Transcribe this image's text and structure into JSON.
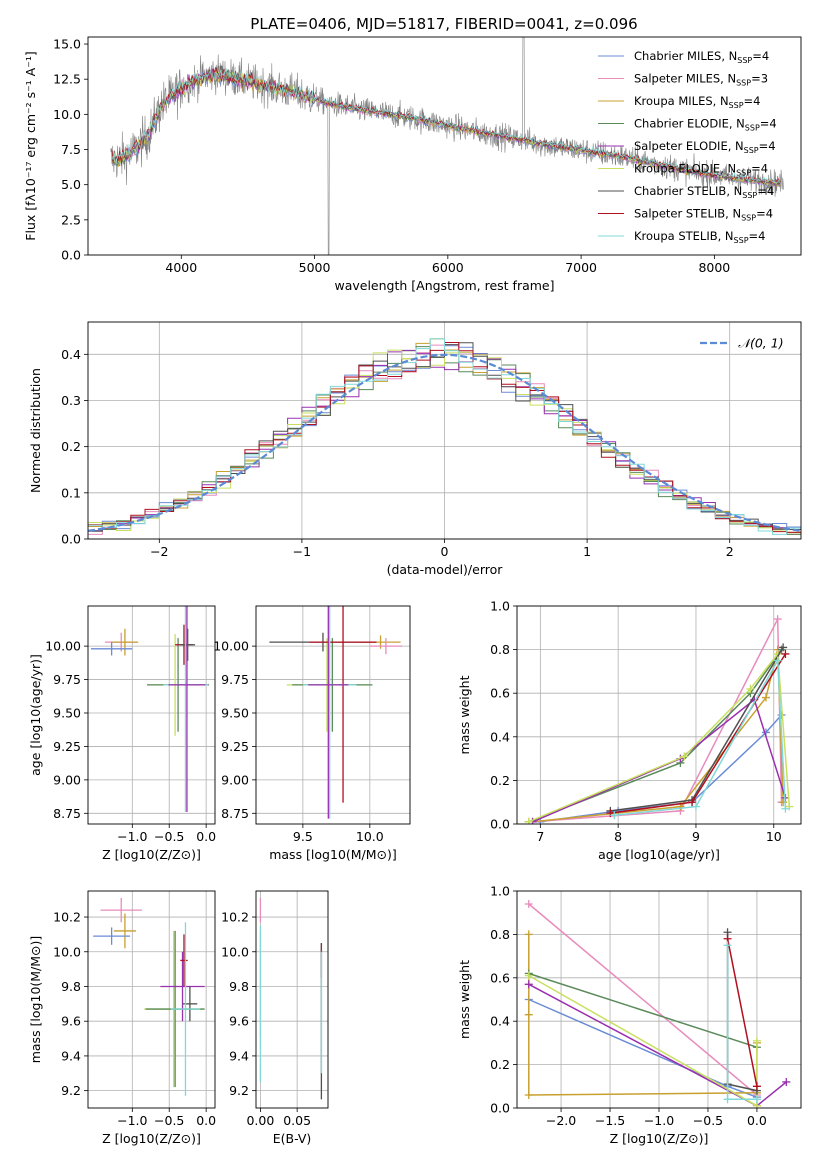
{
  "figure": {
    "title": "PLATE=0406, MJD=51817, FIBERID=0041, z=0.096"
  },
  "series_colors": [
    "#6a8cd6",
    "#e88cbe",
    "#c8a030",
    "#5a8a5a",
    "#9a30b0",
    "#c8e060",
    "#505050",
    "#b01020",
    "#80d8d8"
  ],
  "chart_data": [
    {
      "id": "spectrum",
      "type": "line",
      "title": "PLATE=0406, MJD=51817, FIBERID=0041, z=0.096",
      "xlabel": "wavelength [Angstrom, rest frame]",
      "ylabel": "Flux [fλ10⁻¹⁷ erg cm⁻² s⁻¹ A⁻¹]",
      "xlim": [
        3300,
        8650
      ],
      "ylim": [
        0,
        15.5
      ],
      "xticks": [
        4000,
        5000,
        6000,
        7000,
        8000
      ],
      "yticks": [
        0.0,
        2.5,
        5.0,
        7.5,
        10.0,
        12.5,
        15.0
      ],
      "grid": false,
      "legend_position": "top-right",
      "data_color": "#808080",
      "data_model": {
        "x": [
          3450,
          3550,
          3650,
          3750,
          3850,
          3950,
          4050,
          4150,
          4250,
          4350,
          4500,
          4700,
          4900,
          5100,
          5300,
          5500,
          5700,
          5900,
          6100,
          6300,
          6500,
          6700,
          6900,
          7100,
          7300,
          7500,
          7700,
          7900,
          8100,
          8300,
          8500
        ],
        "y": [
          6.7,
          6.9,
          7.4,
          8.5,
          10.6,
          11.5,
          12.2,
          12.6,
          12.9,
          12.7,
          12.3,
          11.9,
          11.4,
          10.8,
          10.4,
          10.1,
          9.8,
          9.4,
          9.0,
          8.6,
          8.3,
          7.9,
          7.6,
          7.3,
          7.0,
          6.6,
          6.2,
          5.8,
          5.5,
          5.3,
          5.1
        ]
      },
      "series": [
        {
          "name": "Chabrier MILES, NSSP=4",
          "name_main": "Chabrier MILES, N",
          "name_sub": "SSP",
          "name_tail": "=4"
        },
        {
          "name": "Salpeter MILES, NSSP=3",
          "name_main": "Salpeter MILES, N",
          "name_sub": "SSP",
          "name_tail": "=3"
        },
        {
          "name": "Kroupa MILES, NSSP=4",
          "name_main": "Kroupa MILES, N",
          "name_sub": "SSP",
          "name_tail": "=4"
        },
        {
          "name": "Chabrier ELODIE, NSSP=4",
          "name_main": "Chabrier ELODIE, N",
          "name_sub": "SSP",
          "name_tail": "=4"
        },
        {
          "name": "Salpeter ELODIE, NSSP=4",
          "name_main": "Salpeter ELODIE, N",
          "name_sub": "SSP",
          "name_tail": "=4"
        },
        {
          "name": "Kroupa ELODIE, NSSP=4",
          "name_main": "Kroupa ELODIE, N",
          "name_sub": "SSP",
          "name_tail": "=4"
        },
        {
          "name": "Chabrier STELIB, NSSP=4",
          "name_main": "Chabrier STELIB, N",
          "name_sub": "SSP",
          "name_tail": "=4"
        },
        {
          "name": "Salpeter STELIB, NSSP=4",
          "name_main": "Salpeter STELIB, N",
          "name_sub": "SSP",
          "name_tail": "=4"
        },
        {
          "name": "Kroupa STELIB, NSSP=4",
          "name_main": "Kroupa STELIB, N",
          "name_sub": "SSP",
          "name_tail": "=4"
        }
      ]
    },
    {
      "id": "residuals",
      "type": "line",
      "xlabel": "(data-model)/error",
      "ylabel": "Normed distribution",
      "xlim": [
        -2.5,
        2.5
      ],
      "ylim": [
        0,
        0.47
      ],
      "xticks": [
        -2,
        -1,
        0,
        1,
        2
      ],
      "yticks": [
        0.0,
        0.1,
        0.2,
        0.3,
        0.4
      ],
      "grid": true,
      "legend_position": "top-right",
      "reference": {
        "name": "N(0,1)",
        "name_display": "𝒩(0, 1)",
        "mean": 0,
        "sigma": 1,
        "color": "#5b8bd6"
      },
      "bin_edges_start": -2.5,
      "bin_width": 0.1
    },
    {
      "id": "age-vs-z",
      "type": "scatter",
      "xlabel": "Z [log10(Z/Z⊙)]",
      "ylabel": "age  [log10(age/yr)]",
      "xlim": [
        -1.6,
        0.12
      ],
      "ylim": [
        8.67,
        10.3
      ],
      "xticks": [
        -1,
        -0.5,
        0
      ],
      "yticks": [
        8.75,
        9.0,
        9.25,
        9.5,
        9.75,
        10.0
      ],
      "grid": true,
      "points": [
        {
          "x": -1.15,
          "y": 10.03,
          "xerr": 0.22,
          "yerr": 0.07,
          "c": 1
        },
        {
          "x": -1.1,
          "y": 10.03,
          "xerr": 0.18,
          "yerr": 0.1,
          "c": 2
        },
        {
          "x": -1.28,
          "y": 9.98,
          "xerr": 0.28,
          "yerr": 0.05,
          "c": 0
        },
        {
          "x": -0.42,
          "y": 9.71,
          "xerr": 0.38,
          "yerr": 0.38,
          "c": 5
        },
        {
          "x": -0.38,
          "y": 9.71,
          "xerr": 0.42,
          "yerr": 0.35,
          "c": 3
        },
        {
          "x": -0.3,
          "y": 10.01,
          "xerr": 0.12,
          "yerr": 0.15,
          "c": 7
        },
        {
          "x": -0.25,
          "y": 10.01,
          "xerr": 0.1,
          "yerr": 0.12,
          "c": 6
        },
        {
          "x": -0.28,
          "y": 9.71,
          "xerr": 0.3,
          "yerr": 0.95,
          "c": 8
        },
        {
          "x": -0.26,
          "y": 9.71,
          "xerr": 0.25,
          "yerr": 0.95,
          "c": 4
        }
      ]
    },
    {
      "id": "age-vs-mass",
      "type": "scatter",
      "xlabel": "mass [log10(M/M⊙)]",
      "ylabel": "",
      "xlim": [
        9.15,
        10.3
      ],
      "ylim": [
        8.67,
        10.3
      ],
      "xticks": [
        9.5,
        10.0
      ],
      "yticks": [
        8.75,
        9.0,
        9.25,
        9.5,
        9.75,
        10.0
      ],
      "grid": true,
      "points": [
        {
          "x": 9.65,
          "y": 10.03,
          "xerr": 0.4,
          "yerr": 0.07,
          "c": 6
        },
        {
          "x": 10.08,
          "y": 10.03,
          "xerr": 0.15,
          "yerr": 0.05,
          "c": 2
        },
        {
          "x": 10.12,
          "y": 10.0,
          "xerr": 0.12,
          "yerr": 0.06,
          "c": 1
        },
        {
          "x": 9.68,
          "y": 9.71,
          "xerr": 0.3,
          "yerr": 0.35,
          "c": 5
        },
        {
          "x": 9.72,
          "y": 9.71,
          "xerr": 0.3,
          "yerr": 0.35,
          "c": 3
        },
        {
          "x": 9.8,
          "y": 10.03,
          "xerr": 0.25,
          "yerr": 1.2,
          "c": 7
        },
        {
          "x": 9.7,
          "y": 9.71,
          "xerr": 0.2,
          "yerr": 1.0,
          "c": 8
        },
        {
          "x": 9.69,
          "y": 9.71,
          "xerr": 0.15,
          "yerr": 1.0,
          "c": 4
        }
      ]
    },
    {
      "id": "mass-weight-vs-age",
      "type": "line",
      "xlabel": "age  [log10(age/yr)]",
      "ylabel": "mass weight",
      "xlim": [
        6.7,
        10.35
      ],
      "ylim": [
        0,
        1.0
      ],
      "xticks": [
        7,
        8,
        9,
        10
      ],
      "yticks": [
        0.0,
        0.2,
        0.4,
        0.6,
        0.8,
        1.0
      ],
      "grid": true,
      "series": [
        {
          "c": 0,
          "x": [
            7.0,
            8.0,
            8.95,
            9.9,
            10.1
          ],
          "y": [
            0.01,
            0.06,
            0.1,
            0.42,
            0.5
          ]
        },
        {
          "c": 1,
          "x": [
            6.9,
            8.8,
            10.05,
            10.1
          ],
          "y": [
            0.01,
            0.06,
            0.94,
            0.1
          ]
        },
        {
          "c": 2,
          "x": [
            6.9,
            8.8,
            9.9,
            10.05,
            10.12
          ],
          "y": [
            0.01,
            0.08,
            0.58,
            0.8,
            0.1
          ]
        },
        {
          "c": 3,
          "x": [
            6.85,
            8.8,
            9.7,
            10.1
          ],
          "y": [
            0.01,
            0.28,
            0.6,
            0.8
          ]
        },
        {
          "c": 4,
          "x": [
            6.9,
            8.8,
            9.75,
            10.15
          ],
          "y": [
            0.01,
            0.3,
            0.57,
            0.12
          ]
        },
        {
          "c": 5,
          "x": [
            6.85,
            8.85,
            9.7,
            10.05,
            10.2
          ],
          "y": [
            0.01,
            0.31,
            0.62,
            0.78,
            0.08
          ]
        },
        {
          "c": 6,
          "x": [
            7.9,
            8.95,
            10.12
          ],
          "y": [
            0.06,
            0.11,
            0.81
          ]
        },
        {
          "c": 7,
          "x": [
            7.9,
            8.95,
            10.15
          ],
          "y": [
            0.05,
            0.1,
            0.78
          ]
        },
        {
          "c": 8,
          "x": [
            7.95,
            9.0,
            10.05,
            10.15
          ],
          "y": [
            0.04,
            0.08,
            0.75,
            0.07
          ]
        }
      ]
    },
    {
      "id": "mass-vs-z",
      "type": "scatter",
      "xlabel": "Z [log10(Z/Z⊙)]",
      "ylabel": "mass [log10(M/M⊙)]",
      "xlim": [
        -1.6,
        0.12
      ],
      "ylim": [
        9.1,
        10.35
      ],
      "xticks": [
        -1,
        -0.5,
        0
      ],
      "yticks": [
        9.2,
        9.4,
        9.6,
        9.8,
        10.0,
        10.2
      ],
      "grid": true,
      "points": [
        {
          "x": -1.15,
          "y": 10.24,
          "xerr": 0.28,
          "yerr": 0.07,
          "c": 1
        },
        {
          "x": -1.1,
          "y": 10.12,
          "xerr": 0.15,
          "yerr": 0.1,
          "c": 2
        },
        {
          "x": -1.28,
          "y": 10.09,
          "xerr": 0.25,
          "yerr": 0.05,
          "c": 0
        },
        {
          "x": -0.44,
          "y": 9.67,
          "xerr": 0.4,
          "yerr": 0.45,
          "c": 5
        },
        {
          "x": -0.42,
          "y": 9.67,
          "xerr": 0.4,
          "yerr": 0.45,
          "c": 3
        },
        {
          "x": -0.32,
          "y": 9.8,
          "xerr": 0.3,
          "yerr": 0.2,
          "c": 4
        },
        {
          "x": -0.22,
          "y": 9.7,
          "xerr": 0.1,
          "yerr": 0.1,
          "c": 6
        },
        {
          "x": -0.3,
          "y": 9.95,
          "xerr": 0.05,
          "yerr": 0.15,
          "c": 7
        },
        {
          "x": -0.28,
          "y": 9.67,
          "xerr": 0.2,
          "yerr": 0.5,
          "c": 8
        }
      ]
    },
    {
      "id": "mass-vs-ebv",
      "type": "scatter",
      "xlabel": "E(B-V)",
      "ylabel": "",
      "xlim": [
        -0.006,
        0.092
      ],
      "ylim": [
        9.1,
        10.35
      ],
      "xticks": [
        0.0,
        0.05
      ],
      "yticks": [
        9.2,
        9.4,
        9.6,
        9.8,
        10.0,
        10.2
      ],
      "grid": true,
      "points": [
        {
          "x": 0.0,
          "y": 10.24,
          "xerr": 0,
          "yerr": 0.07,
          "c": 1
        },
        {
          "x": 0.0,
          "y": 9.8,
          "xerr": 0,
          "yerr": 0.3,
          "c": 5
        },
        {
          "x": 0.0,
          "y": 9.7,
          "xerr": 0,
          "yerr": 0.45,
          "c": 8
        },
        {
          "x": 0.083,
          "y": 9.95,
          "xerr": 0,
          "yerr": 0.1,
          "c": 7
        },
        {
          "x": 0.083,
          "y": 9.6,
          "xerr": 0,
          "yerr": 0.45,
          "c": 6
        },
        {
          "x": 0.083,
          "y": 9.65,
          "xerr": 0,
          "yerr": 0.35,
          "c": 8
        }
      ]
    },
    {
      "id": "mass-weight-vs-z",
      "type": "line",
      "xlabel": "Z [log10(Z/Z⊙)]",
      "ylabel": "mass weight",
      "xlim": [
        -2.45,
        0.45
      ],
      "ylim": [
        0,
        1.0
      ],
      "xticks": [
        -2.0,
        -1.5,
        -1.0,
        -0.5,
        0.0
      ],
      "yticks": [
        0.0,
        0.2,
        0.4,
        0.6,
        0.8,
        1.0
      ],
      "grid": true,
      "series": [
        {
          "c": 0,
          "x": [
            -2.33,
            -0.3,
            0.0
          ],
          "y": [
            0.5,
            0.1,
            0.05
          ]
        },
        {
          "c": 1,
          "x": [
            -2.33,
            0.0
          ],
          "y": [
            0.94,
            0.06
          ]
        },
        {
          "c": 2,
          "x": [
            -2.33,
            -2.33,
            -2.33,
            0.0,
            0.0
          ],
          "y": [
            0.8,
            0.43,
            0.06,
            0.07,
            0.3
          ]
        },
        {
          "c": 3,
          "x": [
            -2.33,
            0.0
          ],
          "y": [
            0.62,
            0.28
          ]
        },
        {
          "c": 4,
          "x": [
            -2.33,
            0.0,
            0.3
          ],
          "y": [
            0.57,
            0.01,
            0.12
          ]
        },
        {
          "c": 5,
          "x": [
            -2.33,
            0.0,
            0.0
          ],
          "y": [
            0.61,
            0.01,
            0.31
          ]
        },
        {
          "c": 6,
          "x": [
            -0.3,
            -0.3,
            0.0
          ],
          "y": [
            0.81,
            0.11,
            0.08
          ]
        },
        {
          "c": 7,
          "x": [
            -0.3,
            0.0
          ],
          "y": [
            0.78,
            0.1
          ]
        },
        {
          "c": 8,
          "x": [
            -0.3,
            -0.3,
            0.0
          ],
          "y": [
            0.75,
            0.04,
            0.04
          ]
        }
      ]
    }
  ]
}
